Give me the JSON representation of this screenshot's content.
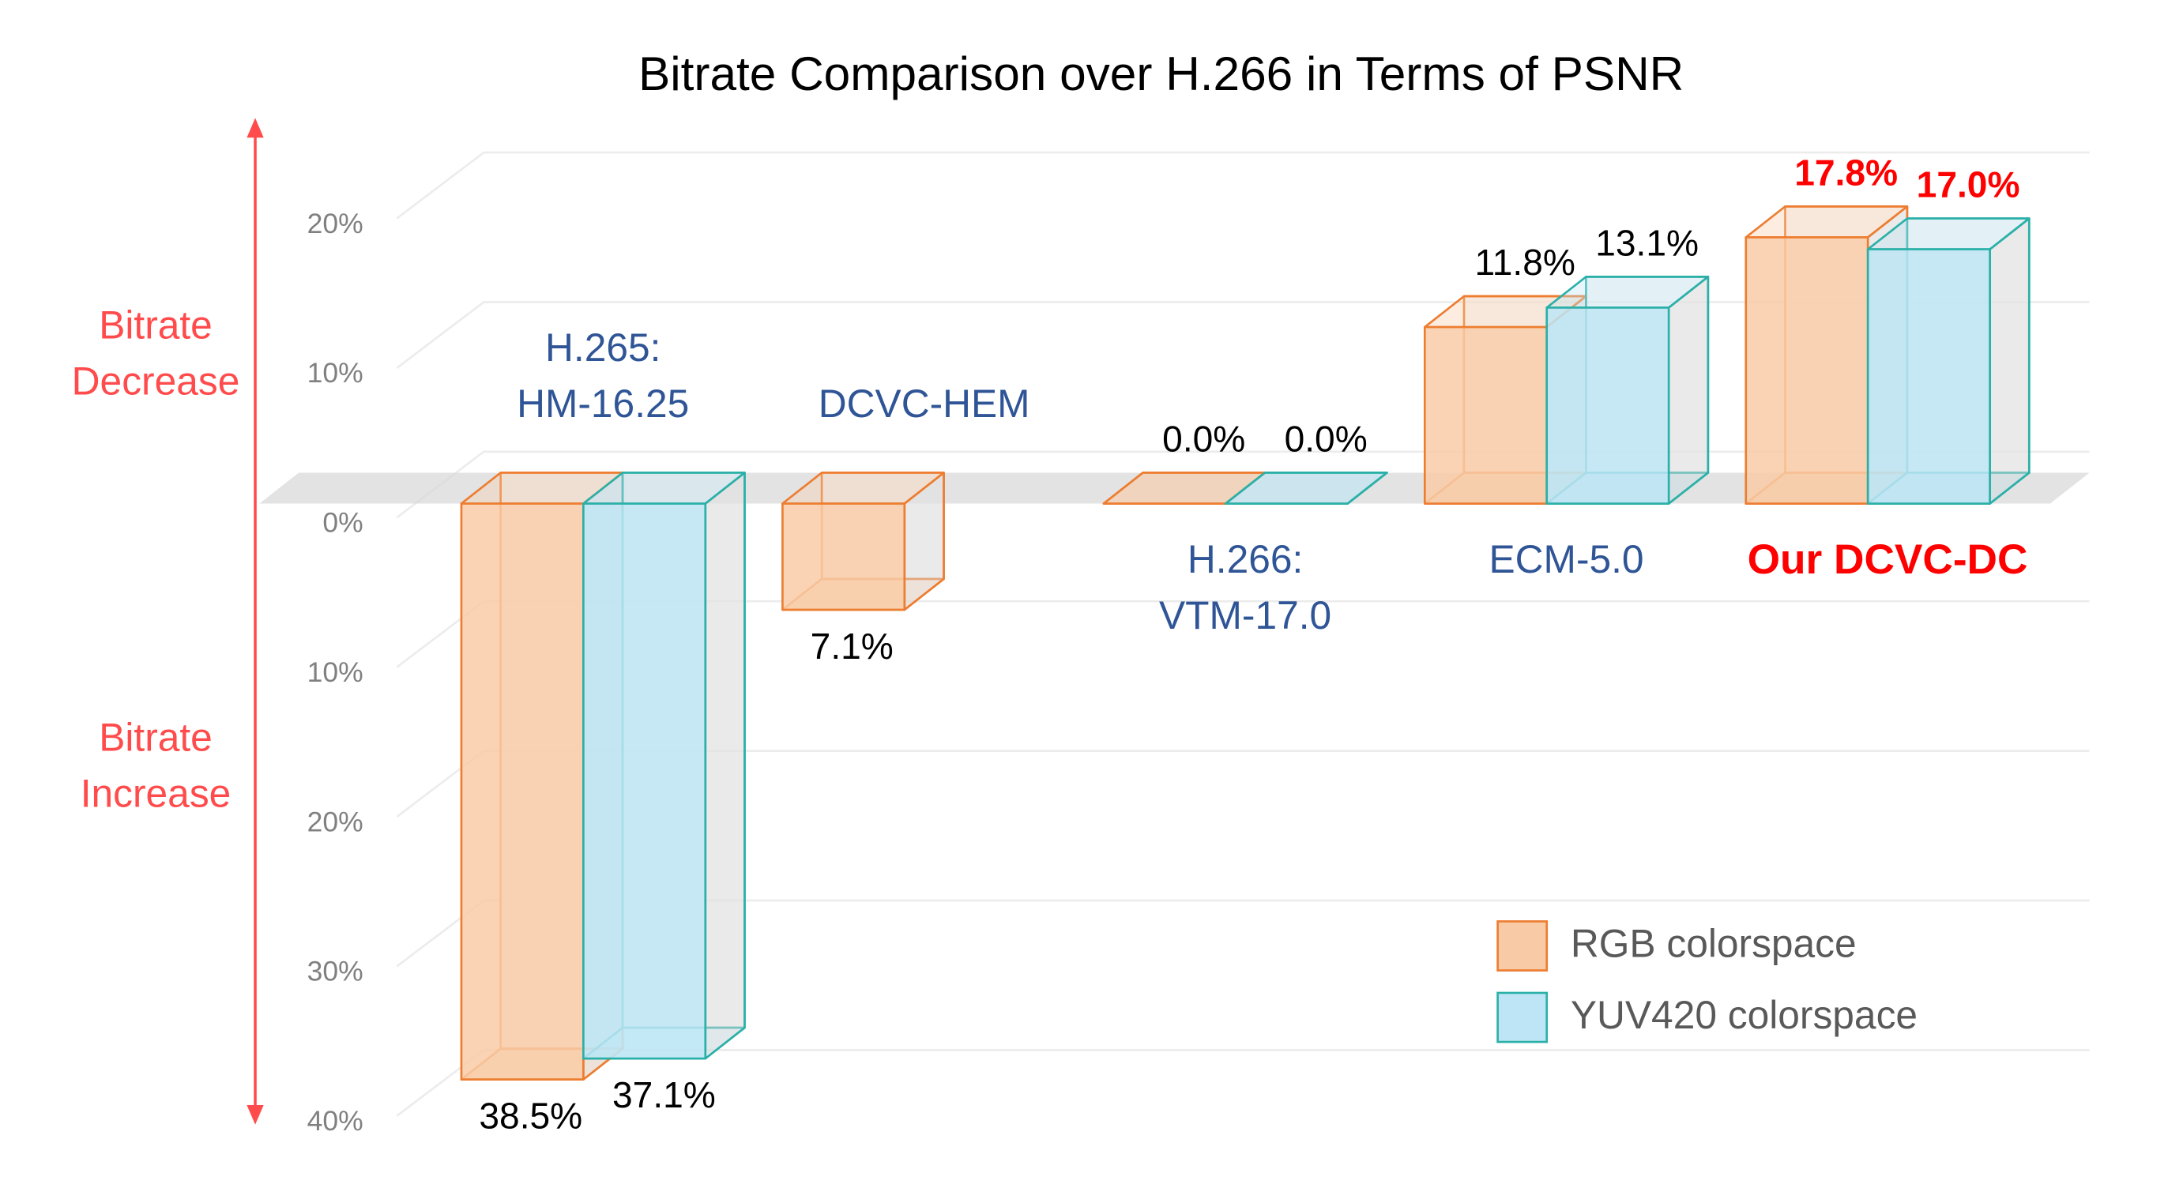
{
  "chart_data": {
    "type": "bar3d",
    "title": "Bitrate Comparison over H.266 in Terms of PSNR",
    "categories": [
      "H.265:\nHM-16.25",
      "DCVC-HEM",
      "H.266:\nVTM-17.0",
      "ECM-5.0",
      "Our DCVC-DC"
    ],
    "category_colors": [
      "#2f5597",
      "#2f5597",
      "#2f5597",
      "#2f5597",
      "#ff0000"
    ],
    "value_label_colors": [
      "#000000",
      "#000000",
      "#000000",
      "#000000",
      "#ff0000"
    ],
    "series": [
      {
        "name": "RGB colorspace",
        "color": "#f8cba6",
        "stroke": "#ed7d31",
        "values": [
          -38.5,
          -7.1,
          0.0,
          11.8,
          17.8
        ],
        "value_labels": [
          "38.5%",
          "7.1%",
          "0.0%",
          "11.8%",
          "17.8%"
        ]
      },
      {
        "name": "YUV420 colorspace",
        "color": "#bde5f5",
        "stroke": "#2bb0a8",
        "values": [
          -37.1,
          null,
          0.0,
          13.1,
          17.0
        ],
        "value_labels": [
          "37.1%",
          null,
          "0.0%",
          "13.1%",
          "17.0%"
        ]
      }
    ],
    "ylim": [
      -40,
      20
    ],
    "yticks": [
      {
        "value": 20,
        "label": "20%"
      },
      {
        "value": 10,
        "label": "10%"
      },
      {
        "value": 0,
        "label": "0%"
      },
      {
        "value": -10,
        "label": "10%"
      },
      {
        "value": -20,
        "label": "20%"
      },
      {
        "value": -30,
        "label": "30%"
      },
      {
        "value": -40,
        "label": "40%"
      }
    ],
    "grid": true,
    "legend": "lower right",
    "annotations": [
      {
        "text": "Bitrate\nDecrease",
        "color": "#ff4b4b"
      },
      {
        "text": "Bitrate\nIncrease",
        "color": "#ff4b4b"
      }
    ]
  }
}
